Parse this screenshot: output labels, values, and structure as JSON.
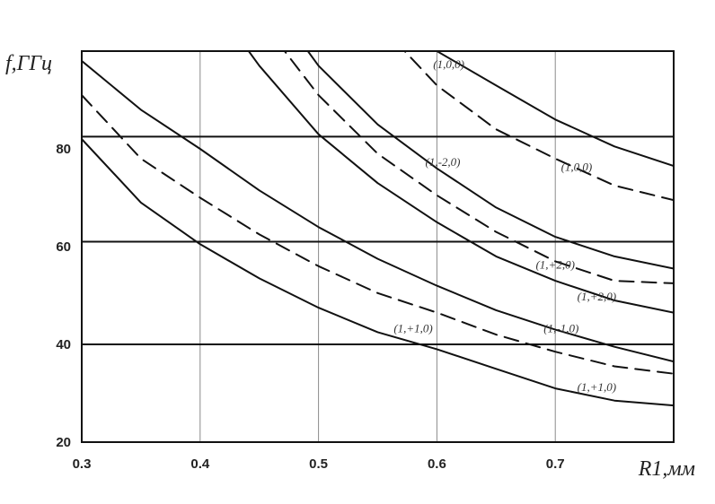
{
  "chart_data": {
    "type": "line",
    "ylabel": "f,ГГц",
    "xlabel": "R1,мм",
    "xlim": [
      0.3,
      0.8
    ],
    "ylim": [
      20,
      100
    ],
    "x_ticks": [
      {
        "value": 0.3,
        "label": "0.3"
      },
      {
        "value": 0.4,
        "label": "0.4"
      },
      {
        "value": 0.5,
        "label": "0.5"
      },
      {
        "value": 0.6,
        "label": "0.6"
      },
      {
        "value": 0.7,
        "label": "0.7"
      }
    ],
    "y_ticks": [
      {
        "value": 20,
        "label": "20"
      },
      {
        "value": 40,
        "label": "40"
      },
      {
        "value": 60,
        "label": "60"
      },
      {
        "value": 80,
        "label": "80"
      }
    ],
    "vertical_grid": [
      0.4,
      0.5,
      0.6,
      0.7
    ],
    "horizontal_lines": [
      40,
      61,
      82.5
    ],
    "series": [
      {
        "style": "solid",
        "x": [
          0.3,
          0.35,
          0.4,
          0.45,
          0.5,
          0.55,
          0.6,
          0.65,
          0.7,
          0.75,
          0.8
        ],
        "y": [
          82,
          69,
          60.5,
          53.5,
          47.5,
          42.5,
          39,
          35,
          31,
          28.5,
          27.5
        ]
      },
      {
        "style": "dashed",
        "x": [
          0.3,
          0.35,
          0.4,
          0.45,
          0.5,
          0.55,
          0.6,
          0.65,
          0.7,
          0.75,
          0.8
        ],
        "y": [
          91,
          78,
          70,
          62.5,
          56,
          50.5,
          46.5,
          42,
          38.5,
          35.5,
          34
        ]
      },
      {
        "style": "solid",
        "x": [
          0.3,
          0.35,
          0.4,
          0.45,
          0.5,
          0.55,
          0.6,
          0.65,
          0.7,
          0.75,
          0.8
        ],
        "y": [
          98,
          88,
          80,
          71.5,
          64,
          57.5,
          52,
          47,
          43,
          39.5,
          36.5
        ]
      },
      {
        "style": "solid",
        "x": [
          0.435,
          0.45,
          0.5,
          0.55,
          0.6,
          0.65,
          0.7,
          0.75,
          0.8
        ],
        "y": [
          102,
          97,
          83,
          73,
          65,
          58,
          53,
          49,
          46.5
        ]
      },
      {
        "style": "dashed",
        "x": [
          0.465,
          0.5,
          0.55,
          0.6,
          0.65,
          0.7,
          0.75,
          0.8
        ],
        "y": [
          102,
          91,
          79,
          70.5,
          63,
          57,
          53,
          52.5
        ]
      },
      {
        "style": "solid",
        "x": [
          0.485,
          0.5,
          0.55,
          0.6,
          0.65,
          0.7,
          0.75,
          0.8
        ],
        "y": [
          102,
          97,
          85,
          76,
          68,
          62,
          58,
          55.5
        ]
      },
      {
        "style": "dashed",
        "x": [
          0.565,
          0.6,
          0.65,
          0.7,
          0.75,
          0.8
        ],
        "y": [
          102,
          93,
          84,
          78,
          72.5,
          69.5
        ]
      },
      {
        "style": "solid",
        "x": [
          0.585,
          0.6,
          0.65,
          0.7,
          0.75,
          0.8
        ],
        "y": [
          102,
          100,
          93,
          86,
          80.5,
          76.5
        ]
      }
    ],
    "annotations": [
      {
        "text": "(1,0,0)",
        "x": 0.61,
        "y": 96.5
      },
      {
        "text": "(1,-2,0)",
        "x": 0.605,
        "y": 76.5
      },
      {
        "text": "(1,0,0)",
        "x": 0.718,
        "y": 75.5
      },
      {
        "text": "(1,+2,0)",
        "x": 0.7,
        "y": 55.5
      },
      {
        "text": "(1,+2,0)",
        "x": 0.735,
        "y": 49
      },
      {
        "text": "(1,+1,0)",
        "x": 0.58,
        "y": 42.5
      },
      {
        "text": "(1,-1,0)",
        "x": 0.705,
        "y": 42.5
      },
      {
        "text": "(1,+1,0)",
        "x": 0.735,
        "y": 30.5
      }
    ]
  }
}
